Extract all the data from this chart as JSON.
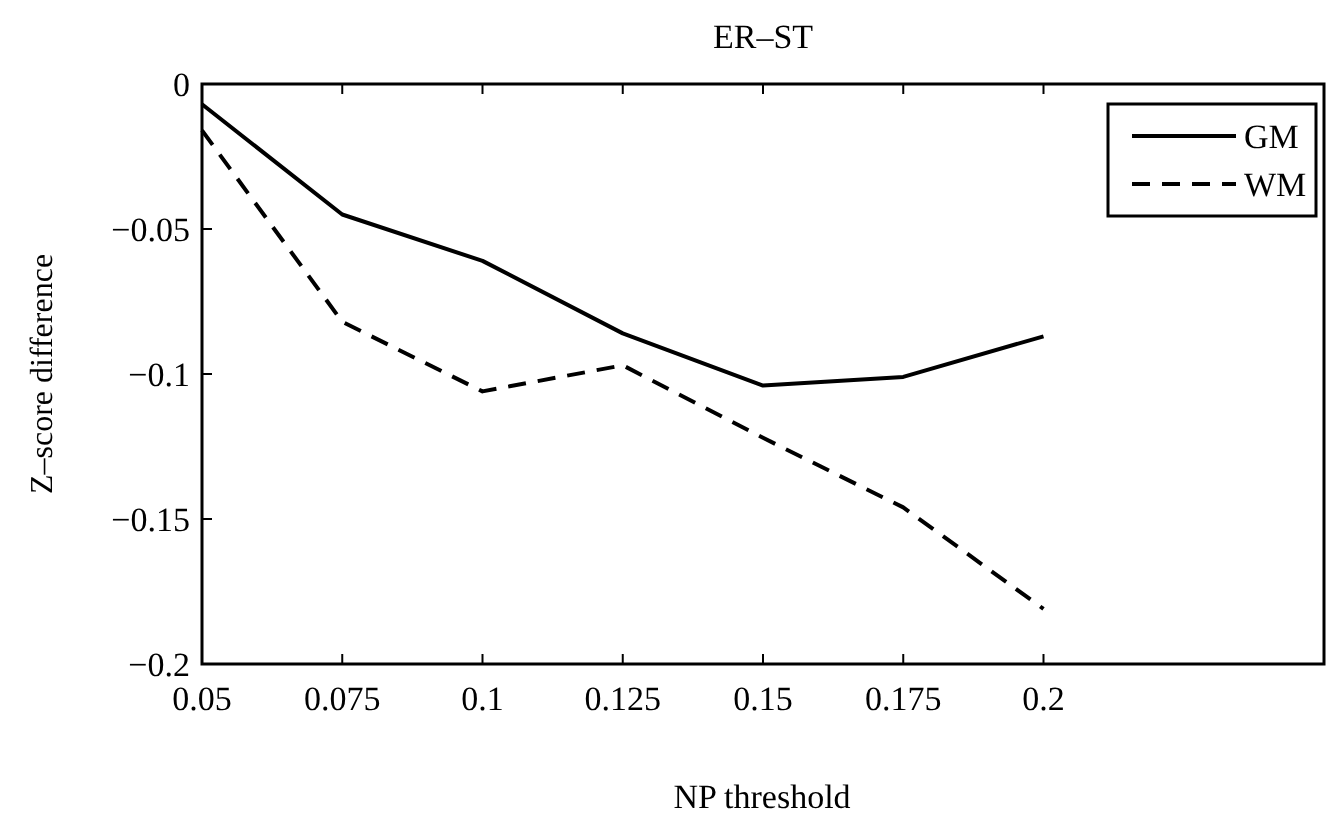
{
  "chart_data": {
    "type": "line",
    "title": "ER–ST",
    "xlabel": "NP threshold",
    "ylabel": "Z–score difference",
    "x": [
      0.05,
      0.075,
      0.1,
      0.125,
      0.15,
      0.175,
      0.2
    ],
    "series": [
      {
        "name": "GM",
        "color": "#000000",
        "line_style": "solid",
        "values": [
          -0.007,
          -0.045,
          -0.061,
          -0.086,
          -0.104,
          -0.101,
          -0.087
        ]
      },
      {
        "name": "WM",
        "color": "#000000",
        "line_style": "dashed",
        "values": [
          -0.016,
          -0.082,
          -0.106,
          -0.097,
          -0.122,
          -0.146,
          -0.181
        ]
      }
    ],
    "xlim": [
      0.05,
      0.25
    ],
    "xticks": [
      0.05,
      0.075,
      0.1,
      0.125,
      0.15,
      0.175,
      0.2
    ],
    "ylim": [
      -0.2,
      0
    ],
    "yticks": [
      {
        "value": -0.2,
        "label": "−0.2"
      },
      {
        "value": -0.15,
        "label": "−0.15"
      },
      {
        "value": -0.1,
        "label": "−0.1"
      },
      {
        "value": -0.05,
        "label": "−0.05"
      },
      0
    ],
    "grid": false,
    "legend": "top right"
  }
}
